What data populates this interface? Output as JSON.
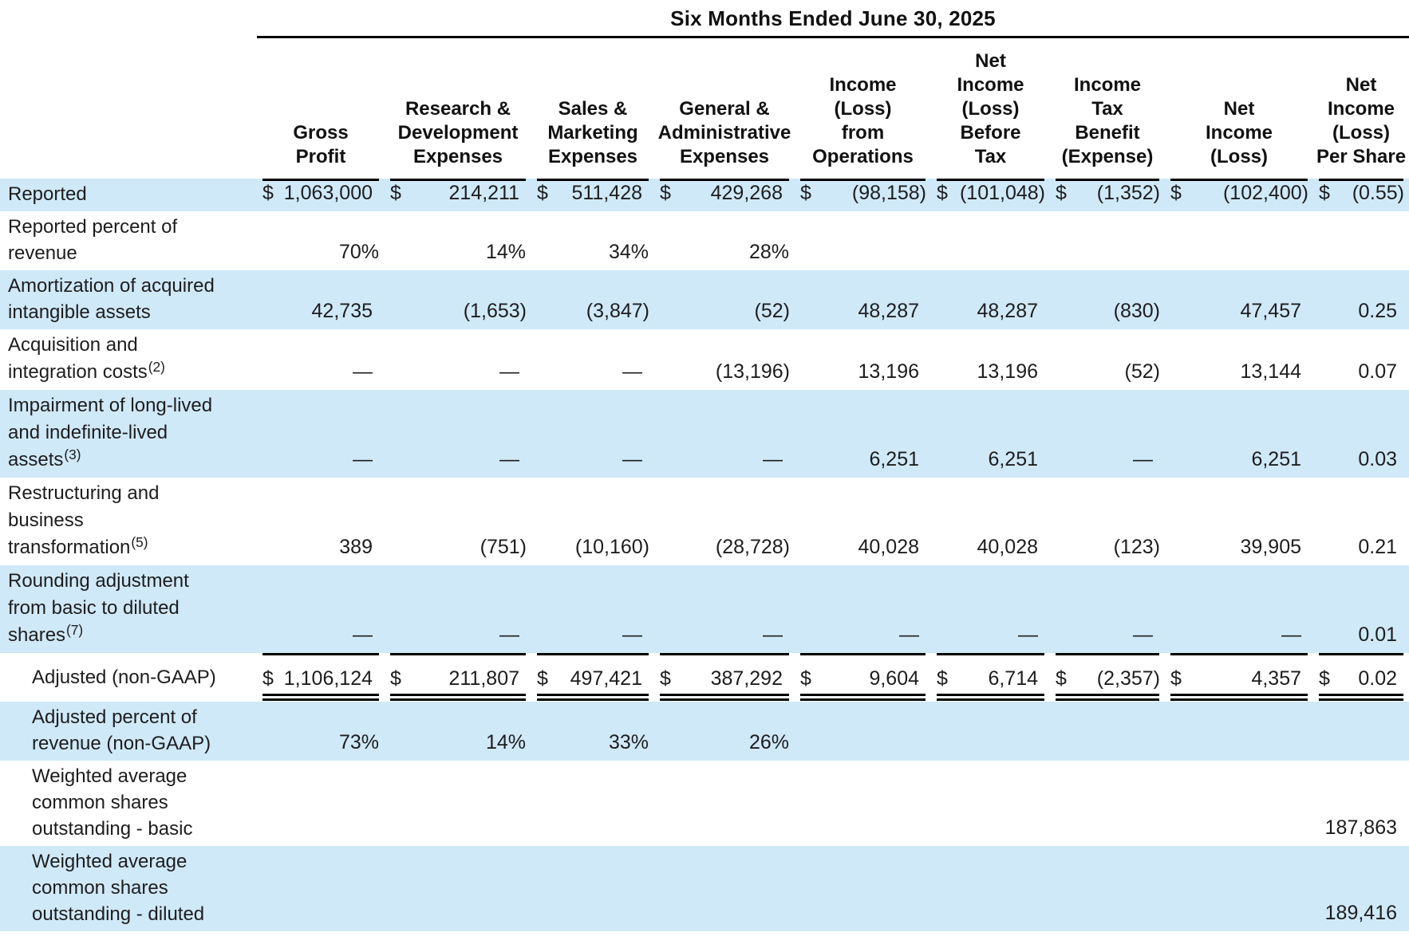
{
  "table": {
    "title": "Six Months Ended June 30, 2025",
    "currency_symbol": "$",
    "columns": [
      "Gross\nProfit",
      "Research &\nDevelopment\nExpenses",
      "Sales &\nMarketing\nExpenses",
      "General &\nAdministrative\nExpenses",
      "Income\n(Loss)\nfrom\nOperations",
      "Net\nIncome\n(Loss)\nBefore\nTax",
      "Income\nTax\nBenefit\n(Expense)",
      "Net\nIncome\n(Loss)",
      "Net\nIncome\n(Loss)\nPer Share"
    ],
    "rows": [
      {
        "label": "Reported",
        "footnote": "",
        "indent": false,
        "shaded": true,
        "dollar": true,
        "rule": "top",
        "values": [
          "1,063,000",
          "214,211",
          "511,428",
          "429,268",
          "(98,158)",
          "(101,048)",
          "(1,352)",
          "(102,400)",
          "(0.55)"
        ]
      },
      {
        "label": "Reported percent of\nrevenue",
        "footnote": "",
        "indent": false,
        "shaded": false,
        "dollar": false,
        "rule": "",
        "values": [
          "70%",
          "14%",
          "34%",
          "28%",
          "",
          "",
          "",
          "",
          ""
        ]
      },
      {
        "label": "Amortization of acquired\nintangible assets",
        "footnote": "",
        "indent": false,
        "shaded": true,
        "dollar": false,
        "rule": "",
        "values": [
          "42,735",
          "(1,653)",
          "(3,847)",
          "(52)",
          "48,287",
          "48,287",
          "(830)",
          "47,457",
          "0.25"
        ]
      },
      {
        "label": "Acquisition and\nintegration costs",
        "footnote": "(2)",
        "indent": false,
        "shaded": false,
        "dollar": false,
        "rule": "",
        "values": [
          "—",
          "—",
          "—",
          "(13,196)",
          "13,196",
          "13,196",
          "(52)",
          "13,144",
          "0.07"
        ]
      },
      {
        "label": "Impairment of long-lived\nand indefinite-lived\nassets",
        "footnote": "(3)",
        "indent": false,
        "shaded": true,
        "dollar": false,
        "rule": "",
        "values": [
          "—",
          "—",
          "—",
          "—",
          "6,251",
          "6,251",
          "—",
          "6,251",
          "0.03"
        ]
      },
      {
        "label": "Restructuring and\nbusiness\ntransformation",
        "footnote": "(5)",
        "indent": false,
        "shaded": false,
        "dollar": false,
        "rule": "",
        "values": [
          "389",
          "(751)",
          "(10,160)",
          "(28,728)",
          "40,028",
          "40,028",
          "(123)",
          "39,905",
          "0.21"
        ]
      },
      {
        "label": "Rounding adjustment\nfrom basic to diluted\nshares",
        "footnote": "(7)",
        "indent": false,
        "shaded": true,
        "dollar": false,
        "rule": "",
        "values": [
          "—",
          "—",
          "—",
          "—",
          "—",
          "—",
          "—",
          "—",
          "0.01"
        ]
      },
      {
        "label": "Adjusted (non-GAAP)",
        "footnote": "",
        "indent": true,
        "shaded": false,
        "dollar": true,
        "rule": "top-double",
        "values": [
          "1,106,124",
          "211,807",
          "497,421",
          "387,292",
          "9,604",
          "6,714",
          "(2,357)",
          "4,357",
          "0.02"
        ]
      },
      {
        "label": "Adjusted percent of\nrevenue (non-GAAP)",
        "footnote": "",
        "indent": true,
        "shaded": true,
        "dollar": false,
        "rule": "",
        "values": [
          "73%",
          "14%",
          "33%",
          "26%",
          "",
          "",
          "",
          "",
          ""
        ]
      },
      {
        "label": "Weighted average\ncommon shares\noutstanding - basic",
        "footnote": "",
        "indent": true,
        "shaded": false,
        "dollar": false,
        "rule": "",
        "values": [
          "",
          "",
          "",
          "",
          "",
          "",
          "",
          "",
          "187,863"
        ]
      },
      {
        "label": "Weighted average\ncommon shares\noutstanding - diluted",
        "footnote": "",
        "indent": true,
        "shaded": true,
        "dollar": false,
        "rule": "",
        "values": [
          "",
          "",
          "",
          "",
          "",
          "",
          "",
          "",
          "189,416"
        ]
      }
    ],
    "colors": {
      "row_highlight": "#cfe9f8",
      "rule": "#000000",
      "text": "#1d1d1f"
    }
  }
}
